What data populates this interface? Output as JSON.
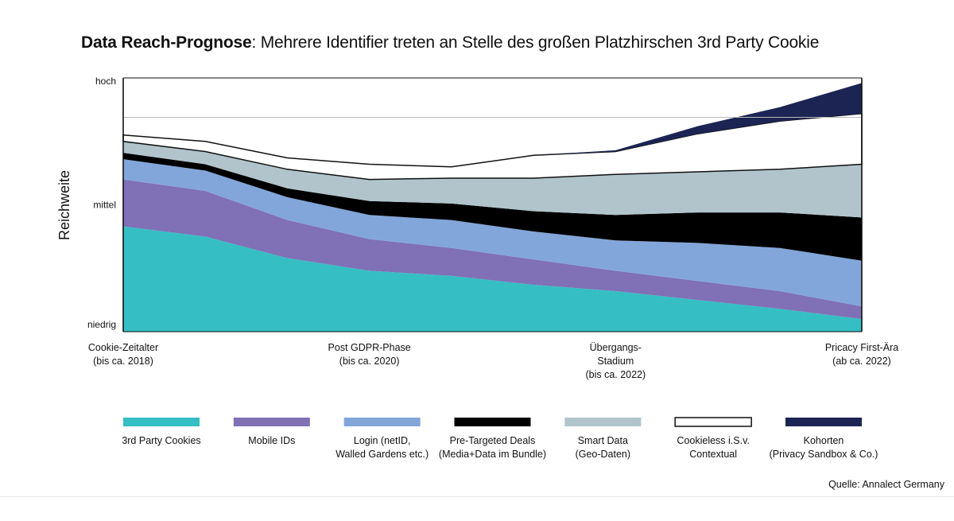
{
  "title": {
    "bold": "Data Reach-Prognose",
    "rest": ": Mehrere Identifier treten an Stelle des großen Platzhirschen 3rd Party Cookie"
  },
  "source": "Quelle: Annalect Germany",
  "chart_data": {
    "type": "area",
    "stacked": true,
    "ylabel": "Reichweite",
    "y_ticks": [
      {
        "label": "hoch",
        "value": 100
      },
      {
        "label": "mittel",
        "value": 50
      },
      {
        "label": "niedrig",
        "value": 0
      }
    ],
    "ylim": [
      0,
      100
    ],
    "x_range": [
      0,
      9
    ],
    "grid_lines_y": [
      84.5
    ],
    "categories": [
      {
        "x": 0,
        "lines": [
          "Cookie-Zeitalter",
          "(bis ca. 2018)"
        ]
      },
      {
        "x": 3,
        "lines": [
          "Post GDPR-Phase",
          "(bis ca. 2020)"
        ]
      },
      {
        "x": 6,
        "lines": [
          "Übergangs-",
          "Stadium",
          "(bis ca. 2022)"
        ]
      },
      {
        "x": 9,
        "lines": [
          "Pricacy First-Ära",
          "(ab ca. 2022)"
        ]
      }
    ],
    "x": [
      0,
      1,
      2,
      3,
      4,
      5,
      6,
      7,
      8,
      9
    ],
    "series": [
      {
        "name": "3rd Party Cookies",
        "color": "#35bfc4",
        "values": [
          41.5,
          37.5,
          29,
          24,
          22,
          18.5,
          16,
          12.5,
          9,
          5
        ]
      },
      {
        "name": "Mobile IDs",
        "color": "#8070b6",
        "values": [
          18.5,
          18,
          15,
          12.5,
          11,
          10,
          8,
          7.5,
          7,
          5
        ]
      },
      {
        "name": "Login (netID,\nWalled Gardens etc.)",
        "color": "#82a6da",
        "values": [
          8,
          8,
          9,
          9.5,
          11,
          11,
          12,
          15,
          17,
          18
        ]
      },
      {
        "name": "Pre-Targeted Deals\n(Media+Data im Bundle)",
        "color": "#000000",
        "values": [
          2.5,
          2.5,
          3.5,
          5.5,
          6.5,
          8,
          10,
          12,
          14,
          17
        ]
      },
      {
        "name": "Smart Data\n(Geo-Daten)",
        "color": "#b1c4cc",
        "values": [
          4.5,
          5,
          7.5,
          8.5,
          10,
          13,
          16,
          16,
          17,
          21
        ]
      },
      {
        "name": "Cookieless i.S.v.\nContextual",
        "color": "#ffffff",
        "values": [
          2.5,
          4,
          4.5,
          6,
          4.5,
          9,
          9,
          15,
          19,
          20
        ]
      },
      {
        "name": "Kohorten\n(Privacy Sandbox & Co.)",
        "color": "#1c2454",
        "values": [
          0,
          0,
          0,
          0,
          0,
          0,
          0.5,
          3,
          5.5,
          12
        ]
      }
    ],
    "legend_position": "bottom"
  }
}
